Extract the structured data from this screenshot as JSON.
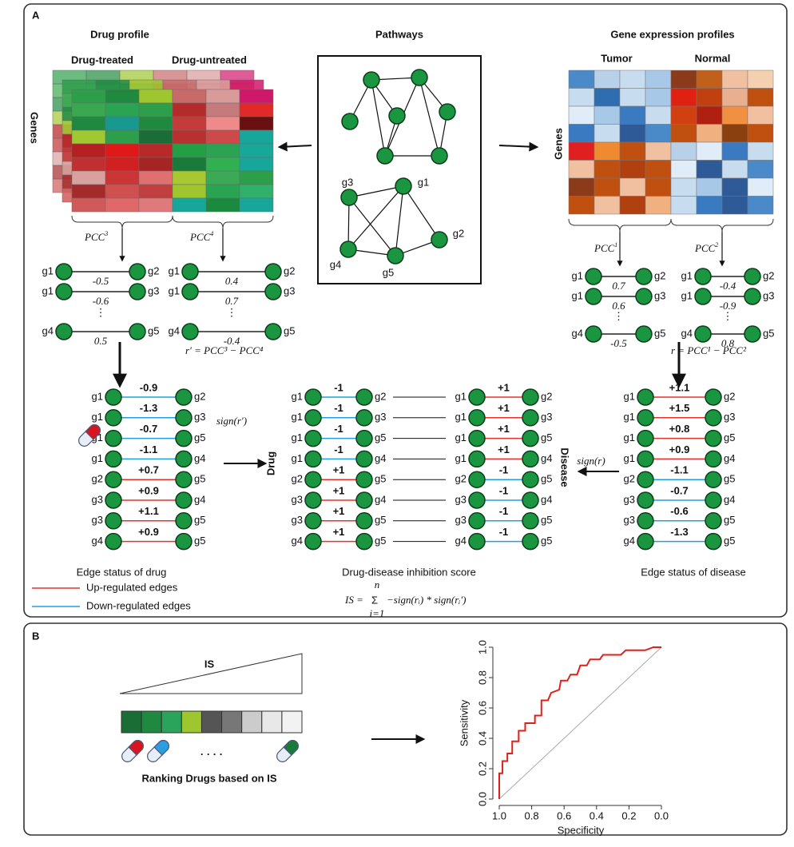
{
  "panel_a": {
    "label": "A",
    "drug_profile": {
      "title": "Drug profile",
      "columns": [
        "Drug-treated",
        "Drug-untreated"
      ],
      "rows_label": "Genes",
      "colors": [
        [
          "#2d9e4a",
          "#1f8a3f",
          "#9dc62f",
          "#c86a6a",
          "#d99a9a",
          "#d0186a"
        ],
        [
          "#3aa84f",
          "#2aa452",
          "#2d9e4a",
          "#b52a2a",
          "#c57b7b",
          "#e02a2a"
        ],
        [
          "#1f8a3f",
          "#17998f",
          "#1f8a3f",
          "#c53a3a",
          "#f08a8a",
          "#6a1010"
        ],
        [
          "#a0c830",
          "#2d9e4a",
          "#1a6e35",
          "#b83030",
          "#cc4a4a",
          "#17a69a"
        ],
        [
          "#b52020",
          "#e01818",
          "#b82a2a",
          "#23a043",
          "#2aa452",
          "#18a89a"
        ],
        [
          "#c03030",
          "#d02020",
          "#a52525",
          "#1a7a3a",
          "#30b050",
          "#17a69a"
        ],
        [
          "#d9a0a0",
          "#cc3535",
          "#e07070",
          "#a8c832",
          "#3aaa55",
          "#2d9e4a"
        ],
        [
          "#a52a2a",
          "#d05050",
          "#c04040",
          "#9dc62f",
          "#2aa452",
          "#30b06a"
        ],
        [
          "#d05a5a",
          "#e06868",
          "#e07a7a",
          "#17a69a",
          "#1a8a3f",
          "#17a69a"
        ]
      ]
    },
    "pathways": {
      "title": "Pathways",
      "nodes": [
        "g3",
        "g1",
        "g2",
        "g4",
        "g5"
      ]
    },
    "gene_expression": {
      "title": "Gene expression profiles",
      "columns": [
        "Tumor",
        "Normal"
      ],
      "rows_label": "Genes",
      "colors": [
        [
          "#4a8ac8",
          "#b8d0e8",
          "#c8dcf0",
          "#a8c8e8",
          "#8b3a1a",
          "#c0601a",
          "#f0c0a0",
          "#f5d0b0"
        ],
        [
          "#c8dcf0",
          "#2e6eb0",
          "#c8dcf0",
          "#a8c8e8",
          "#e02010",
          "#c04010",
          "#e8b090",
          "#c05010"
        ],
        [
          "#e0ecf8",
          "#a8c8e8",
          "#3a7ac0",
          "#c8dcf0",
          "#d04010",
          "#b02010",
          "#f09040",
          "#f0c0a0"
        ],
        [
          "#3a7ac0",
          "#c8dcf0",
          "#2e5a98",
          "#4a8ac8",
          "#c05010",
          "#f0b080",
          "#8b4010",
          "#c05010"
        ],
        [
          "#e02020",
          "#f08a30",
          "#c05010",
          "#f0c0a0",
          "#b8d0e8",
          "#e0ecf8",
          "#3a7ac0",
          "#c8dcf0"
        ],
        [
          "#f0c0a0",
          "#c05010",
          "#b04010",
          "#c05010",
          "#e0ecf8",
          "#2e5a98",
          "#c8dcf0",
          "#4a8ac8"
        ],
        [
          "#8b3a1a",
          "#c05010",
          "#f0c0a0",
          "#c05010",
          "#c8dcf0",
          "#a8c8e8",
          "#2e5a98",
          "#e0ecf8"
        ],
        [
          "#c05010",
          "#f0c0a0",
          "#b04010",
          "#f0b080",
          "#c8dcf0",
          "#3a7ac0",
          "#2e5a98",
          "#4a8ac8"
        ]
      ]
    },
    "pcc": [
      {
        "base": "PCC",
        "sup": "3"
      },
      {
        "base": "PCC",
        "sup": "4"
      },
      {
        "base": "PCC",
        "sup": "1"
      },
      {
        "base": "PCC",
        "sup": "2"
      }
    ],
    "ellipsis": "⋮",
    "networks": [
      [
        {
          "a": "g1",
          "b": "g2",
          "value": -0.5
        },
        {
          "a": "g1",
          "b": "g3",
          "value": -0.6
        },
        {
          "a": "g4",
          "b": "g5",
          "value": 0.5
        }
      ],
      [
        {
          "a": "g1",
          "b": "g2",
          "value": 0.4
        },
        {
          "a": "g1",
          "b": "g3",
          "value": 0.7
        },
        {
          "a": "g4",
          "b": "g5",
          "value": -0.4
        }
      ],
      [
        {
          "a": "g1",
          "b": "g2",
          "value": 0.7
        },
        {
          "a": "g1",
          "b": "g3",
          "value": 0.6
        },
        {
          "a": "g4",
          "b": "g5",
          "value": -0.5
        }
      ],
      [
        {
          "a": "g1",
          "b": "g2",
          "value": -0.4
        },
        {
          "a": "g1",
          "b": "g3",
          "value": -0.9
        },
        {
          "a": "g4",
          "b": "g5",
          "value": 0.8
        }
      ]
    ],
    "formula_drug": "r′ = PCC³ − PCC⁴",
    "formula_disease": "r = PCC¹ − PCC²",
    "sign_drug": "sign(r′)",
    "sign_disease": "sign(r)",
    "drug_edges": [
      {
        "a": "g1",
        "b": "g2",
        "value": -0.9,
        "label": "-0.9"
      },
      {
        "a": "g1",
        "b": "g3",
        "value": -1.3,
        "label": "-1.3"
      },
      {
        "a": "g1",
        "b": "g5",
        "value": -0.7,
        "label": "-0.7"
      },
      {
        "a": "g1",
        "b": "g4",
        "value": -1.1,
        "label": "-1.1"
      },
      {
        "a": "g2",
        "b": "g5",
        "value": 0.7,
        "label": "+0.7"
      },
      {
        "a": "g3",
        "b": "g4",
        "value": 0.9,
        "label": "+0.9"
      },
      {
        "a": "g3",
        "b": "g5",
        "value": 1.1,
        "label": "+1.1"
      },
      {
        "a": "g4",
        "b": "g5",
        "value": 0.9,
        "label": "+0.9"
      }
    ],
    "score_drug_edges": [
      {
        "a": "g1",
        "b": "g2",
        "value": -1,
        "label": "-1"
      },
      {
        "a": "g1",
        "b": "g3",
        "value": -1,
        "label": "-1"
      },
      {
        "a": "g1",
        "b": "g5",
        "value": -1,
        "label": "-1"
      },
      {
        "a": "g1",
        "b": "g4",
        "value": -1,
        "label": "-1"
      },
      {
        "a": "g2",
        "b": "g5",
        "value": 1,
        "label": "+1"
      },
      {
        "a": "g3",
        "b": "g4",
        "value": 1,
        "label": "+1"
      },
      {
        "a": "g3",
        "b": "g5",
        "value": 1,
        "label": "+1"
      },
      {
        "a": "g4",
        "b": "g5",
        "value": 1,
        "label": "+1"
      }
    ],
    "score_disease_edges": [
      {
        "a": "g1",
        "b": "g2",
        "value": 1,
        "label": "+1"
      },
      {
        "a": "g1",
        "b": "g3",
        "value": 1,
        "label": "+1"
      },
      {
        "a": "g1",
        "b": "g5",
        "value": 1,
        "label": "+1"
      },
      {
        "a": "g1",
        "b": "g4",
        "value": 1,
        "label": "+1"
      },
      {
        "a": "g2",
        "b": "g5",
        "value": -1,
        "label": "-1"
      },
      {
        "a": "g3",
        "b": "g4",
        "value": -1,
        "label": "-1"
      },
      {
        "a": "g3",
        "b": "g5",
        "value": -1,
        "label": "-1"
      },
      {
        "a": "g4",
        "b": "g5",
        "value": -1,
        "label": "-1"
      }
    ],
    "disease_edges": [
      {
        "a": "g1",
        "b": "g2",
        "value": 1.1,
        "label": "+1.1"
      },
      {
        "a": "g1",
        "b": "g3",
        "value": 1.5,
        "label": "+1.5"
      },
      {
        "a": "g1",
        "b": "g5",
        "value": 0.8,
        "label": "+0.8"
      },
      {
        "a": "g1",
        "b": "g4",
        "value": 0.9,
        "label": "+0.9"
      },
      {
        "a": "g2",
        "b": "g5",
        "value": -1.1,
        "label": "-1.1"
      },
      {
        "a": "g3",
        "b": "g4",
        "value": -0.7,
        "label": "-0.7"
      },
      {
        "a": "g3",
        "b": "g5",
        "value": -0.6,
        "label": "-0.6"
      },
      {
        "a": "g4",
        "b": "g5",
        "value": -1.3,
        "label": "-1.3"
      }
    ],
    "drug_label": "Drug",
    "disease_label": "Disease",
    "captions": [
      "Edge status of drug",
      "Drug-disease inhibition score",
      "Edge status of disease"
    ],
    "legend": [
      {
        "name": "Up-regulated edges",
        "color": "#e8302a"
      },
      {
        "name": "Down-regulated edges",
        "color": "#1ea0e0"
      }
    ],
    "is_formula": {
      "lhs": "IS =",
      "sum": "Σ",
      "upper": "n",
      "lower": "i=1",
      "rhs": "−sign(rᵢ) * sign(rᵢ′)"
    }
  },
  "panel_b": {
    "label": "B",
    "is_label": "IS",
    "colorbar": [
      "#1a6e35",
      "#1f8a3f",
      "#2aa45a",
      "#9dc62f",
      "#555555",
      "#777777",
      "#cccccc",
      "#e8e8e8",
      "#f2f2f2"
    ],
    "dots": "· · · ·",
    "caption": "Ranking Drugs based on IS",
    "roc": {
      "xlabel": "Specificity",
      "ylabel": "Sensitivity",
      "color": "#e0201a",
      "xlim": [
        1.0,
        0.0
      ],
      "ylim": [
        0.0,
        1.0
      ],
      "xticks": [
        {
          "value": 1.0,
          "label": "1.0"
        },
        {
          "value": 0.8,
          "label": "0.8"
        },
        {
          "value": 0.6,
          "label": "0.6"
        },
        {
          "value": 0.4,
          "label": "0.4"
        },
        {
          "value": 0.2,
          "label": "0.2"
        },
        {
          "value": 0.0,
          "label": "0.0"
        }
      ],
      "yticks": [
        {
          "value": 0.0,
          "label": "0.0"
        },
        {
          "value": 0.2,
          "label": "0.2"
        },
        {
          "value": 0.4,
          "label": "0.4"
        },
        {
          "value": 0.6,
          "label": "0.6"
        },
        {
          "value": 0.8,
          "label": "0.8"
        },
        {
          "value": 1.0,
          "label": "1.0"
        }
      ],
      "x": [
        1.0,
        1.0,
        0.98,
        0.98,
        0.95,
        0.95,
        0.92,
        0.92,
        0.88,
        0.88,
        0.84,
        0.84,
        0.78,
        0.78,
        0.74,
        0.74,
        0.7,
        0.68,
        0.63,
        0.62,
        0.58,
        0.56,
        0.52,
        0.5,
        0.46,
        0.44,
        0.38,
        0.36,
        0.25,
        0.22,
        0.1,
        0.05,
        0.0
      ],
      "y": [
        0.0,
        0.17,
        0.17,
        0.25,
        0.25,
        0.3,
        0.3,
        0.38,
        0.38,
        0.45,
        0.45,
        0.5,
        0.5,
        0.55,
        0.55,
        0.65,
        0.65,
        0.7,
        0.72,
        0.78,
        0.78,
        0.82,
        0.82,
        0.88,
        0.88,
        0.92,
        0.92,
        0.95,
        0.95,
        0.98,
        0.98,
        1.0,
        1.0
      ]
    }
  }
}
